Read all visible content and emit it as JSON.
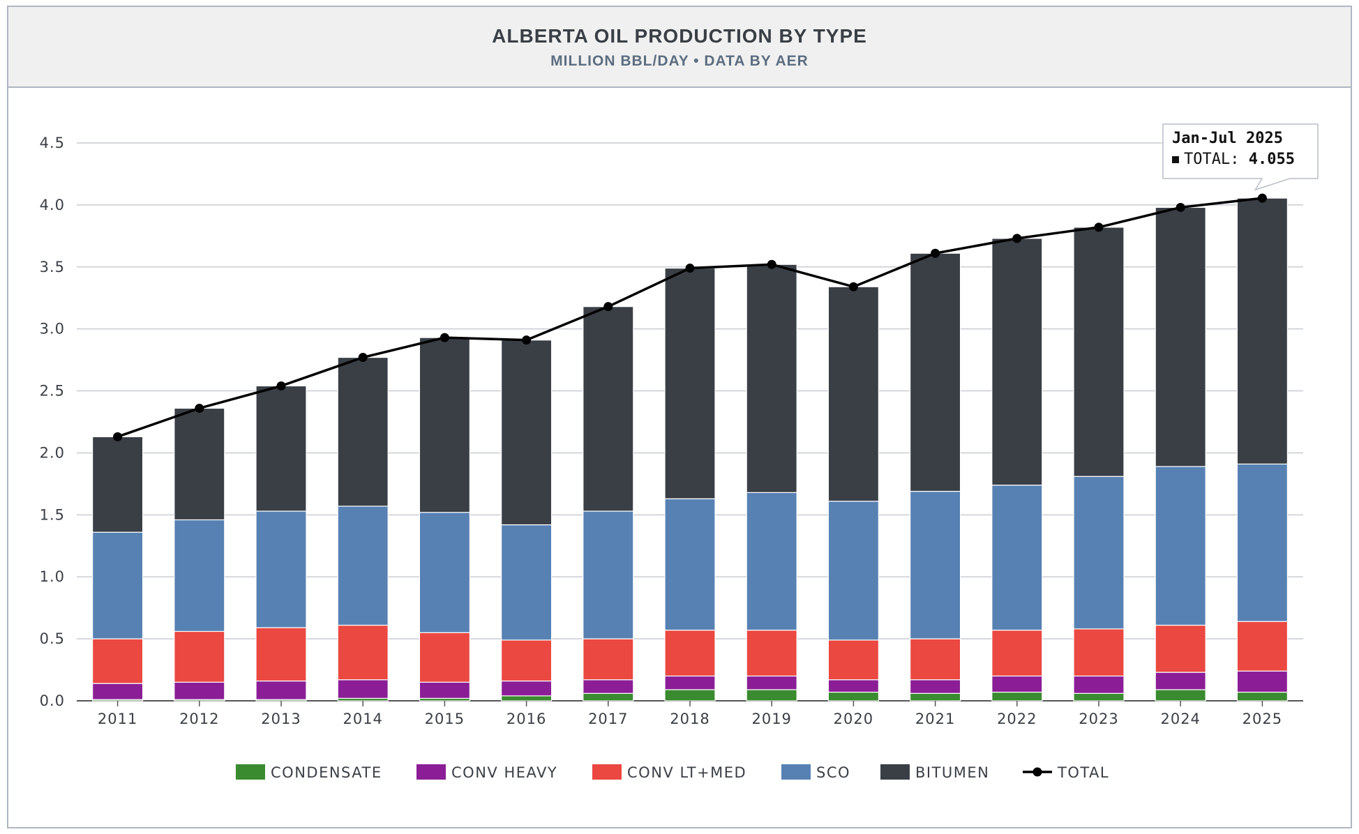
{
  "header": {
    "title": "ALBERTA OIL PRODUCTION BY TYPE",
    "subtitle": "MILLION BBL/DAY • DATA BY AER"
  },
  "tooltip": {
    "title": "Jan-Jul 2025",
    "label": "TOTAL:",
    "value": "4.055"
  },
  "chart_data": {
    "type": "bar",
    "stacked": true,
    "title": "ALBERTA OIL PRODUCTION BY TYPE",
    "subtitle": "MILLION BBL/DAY • DATA BY AER",
    "xlabel": "",
    "ylabel": "",
    "ylim": [
      0,
      4.5
    ],
    "yticks": [
      "0.0",
      "0.5",
      "1.0",
      "1.5",
      "2.0",
      "2.5",
      "3.0",
      "3.5",
      "4.0",
      "4.5"
    ],
    "grid": true,
    "legend_position": "bottom",
    "categories": [
      "2011",
      "2012",
      "2013",
      "2014",
      "2015",
      "2016",
      "2017",
      "2018",
      "2019",
      "2020",
      "2021",
      "2022",
      "2023",
      "2024",
      "2025"
    ],
    "series": [
      {
        "name": "CONDENSATE",
        "color": "#3a8a2f",
        "values": [
          0.01,
          0.01,
          0.01,
          0.02,
          0.02,
          0.04,
          0.06,
          0.09,
          0.09,
          0.07,
          0.06,
          0.07,
          0.06,
          0.09,
          0.07
        ]
      },
      {
        "name": "CONV HEAVY",
        "color": "#8b1e96",
        "values": [
          0.13,
          0.14,
          0.15,
          0.15,
          0.13,
          0.12,
          0.11,
          0.11,
          0.11,
          0.1,
          0.11,
          0.13,
          0.14,
          0.14,
          0.17
        ]
      },
      {
        "name": "CONV LT+MED",
        "color": "#ea4841",
        "values": [
          0.36,
          0.41,
          0.43,
          0.44,
          0.4,
          0.33,
          0.33,
          0.37,
          0.37,
          0.32,
          0.33,
          0.37,
          0.38,
          0.38,
          0.4
        ]
      },
      {
        "name": "SCO",
        "color": "#5781b3",
        "values": [
          0.86,
          0.9,
          0.94,
          0.96,
          0.97,
          0.93,
          1.03,
          1.06,
          1.11,
          1.12,
          1.19,
          1.17,
          1.23,
          1.28,
          1.27
        ]
      },
      {
        "name": "BITUMEN",
        "color": "#3a3f46",
        "values": [
          0.77,
          0.9,
          1.01,
          1.2,
          1.41,
          1.49,
          1.65,
          1.86,
          1.84,
          1.73,
          1.92,
          1.99,
          2.01,
          2.09,
          2.145
        ]
      }
    ],
    "total": {
      "name": "TOTAL",
      "color": "#000000",
      "values": [
        2.13,
        2.36,
        2.54,
        2.77,
        2.93,
        2.91,
        3.18,
        3.49,
        3.52,
        3.34,
        3.61,
        3.73,
        3.82,
        3.98,
        4.055
      ]
    }
  }
}
